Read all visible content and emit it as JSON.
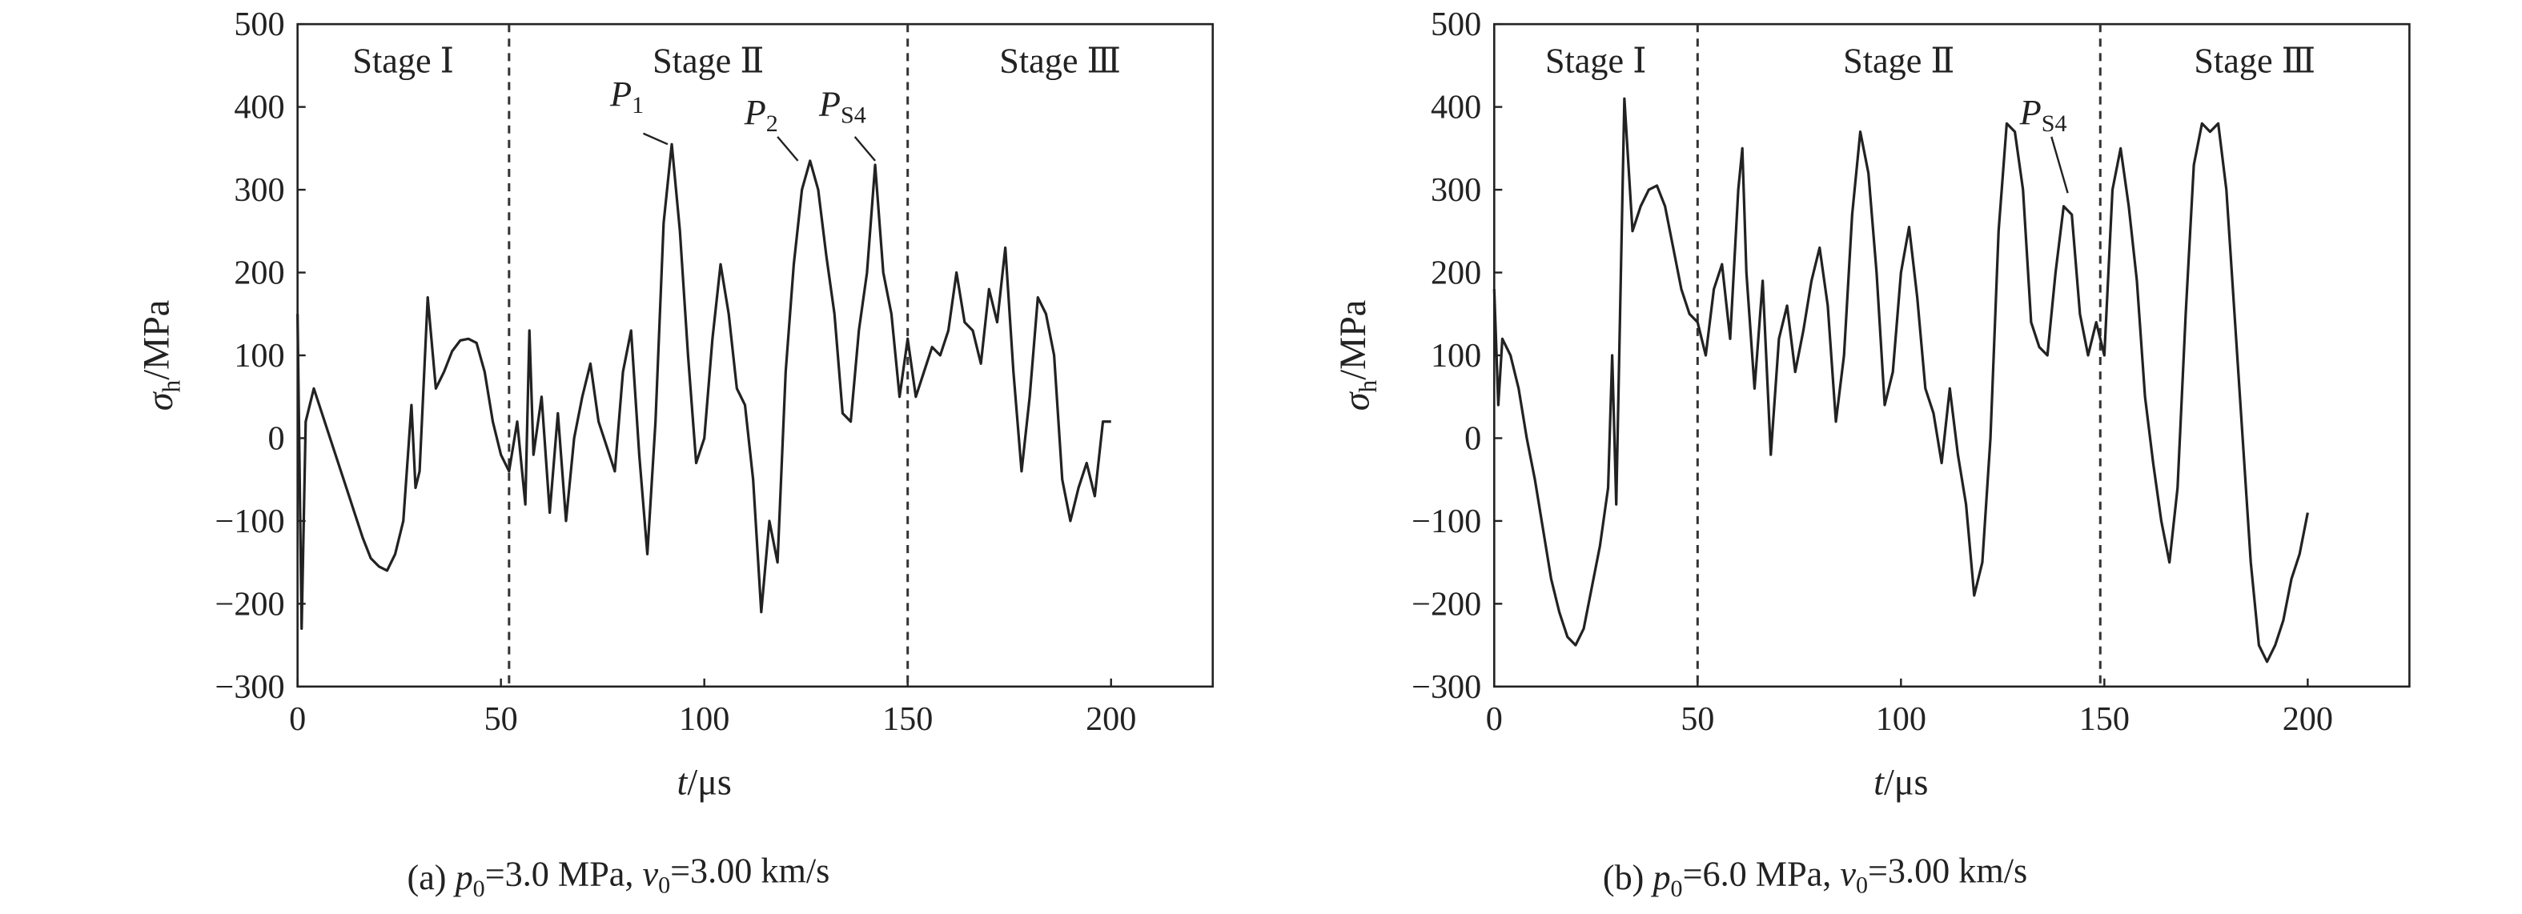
{
  "chart_data": [
    {
      "type": "line",
      "color": "#222",
      "xlim": [
        0,
        225
      ],
      "ylim": [
        -300,
        500
      ],
      "xticks": [
        0,
        50,
        100,
        150,
        200
      ],
      "yticks": [
        {
          "value": -300,
          "label": "−300"
        },
        {
          "value": -200,
          "label": "−200"
        },
        {
          "value": -100,
          "label": "−100"
        },
        0,
        100,
        200,
        300,
        400,
        500
      ],
      "x_label": [
        {
          "text": "t",
          "italic": true
        },
        {
          "text": "/μs"
        }
      ],
      "y_label": [
        {
          "text": "σ",
          "italic": true
        },
        {
          "text": "h",
          "sub": true
        },
        {
          "text": "/MPa"
        }
      ],
      "caption": [
        {
          "text": "(a) "
        },
        {
          "text": "p",
          "italic": true
        },
        {
          "text": "0",
          "sub": true
        },
        {
          "text": "=3.0 MPa, "
        },
        {
          "text": "v",
          "italic": true
        },
        {
          "text": "0",
          "sub": true
        },
        {
          "text": "=3.00 km/s"
        }
      ],
      "dividers": [
        52,
        150
      ],
      "stage_labels": [
        "Stage Ⅰ",
        "Stage Ⅱ",
        "Stage Ⅲ"
      ],
      "annotations": [
        [
          {
            "text": "P",
            "italic": true
          },
          {
            "text": "1",
            "sub": true
          }
        ],
        [
          {
            "text": "P",
            "italic": true
          },
          {
            "text": "2",
            "sub": true
          }
        ],
        [
          {
            "text": "P",
            "italic": true
          },
          {
            "text": "S4",
            "sub": true
          }
        ]
      ],
      "x": [
        0,
        1,
        2,
        4,
        6,
        8,
        10,
        12,
        14,
        16,
        18,
        20,
        22,
        24,
        26,
        28,
        29,
        30,
        32,
        34,
        36,
        38,
        40,
        42,
        44,
        46,
        48,
        50,
        52,
        54,
        56,
        57,
        58,
        60,
        62,
        64,
        66,
        68,
        70,
        72,
        74,
        76,
        78,
        80,
        82,
        84,
        86,
        88,
        90,
        92,
        94,
        96,
        98,
        100,
        102,
        104,
        106,
        108,
        110,
        112,
        114,
        116,
        118,
        120,
        122,
        124,
        126,
        128,
        130,
        132,
        134,
        136,
        138,
        140,
        142,
        144,
        146,
        148,
        150,
        152,
        154,
        156,
        158,
        160,
        162,
        164,
        166,
        168,
        170,
        172,
        174,
        176,
        178,
        180,
        182,
        184,
        186,
        188,
        190,
        192,
        194,
        196,
        198,
        200
      ],
      "values": [
        150,
        -230,
        20,
        60,
        30,
        0,
        -30,
        -60,
        -90,
        -120,
        -145,
        -155,
        -160,
        -140,
        -100,
        40,
        -60,
        -40,
        170,
        60,
        80,
        105,
        118,
        120,
        115,
        80,
        20,
        -20,
        -40,
        20,
        -80,
        130,
        -20,
        50,
        -90,
        30,
        -100,
        0,
        50,
        90,
        20,
        -10,
        -40,
        80,
        130,
        -20,
        -140,
        20,
        260,
        355,
        250,
        100,
        -30,
        0,
        120,
        210,
        150,
        60,
        40,
        -50,
        -210,
        -100,
        -150,
        80,
        210,
        300,
        335,
        300,
        220,
        150,
        30,
        20,
        130,
        200,
        330,
        200,
        150,
        50,
        120,
        50,
        80,
        110,
        100,
        130,
        200,
        140,
        130,
        90,
        180,
        140,
        230,
        80,
        -40,
        50,
        170,
        150,
        100,
        -50,
        -100,
        -60,
        -30,
        -70,
        20,
        20
      ]
    },
    {
      "type": "line",
      "color": "#222",
      "xlim": [
        0,
        225
      ],
      "ylim": [
        -300,
        500
      ],
      "xticks": [
        0,
        50,
        100,
        150,
        200
      ],
      "yticks": [
        {
          "value": -300,
          "label": "−300"
        },
        {
          "value": -200,
          "label": "−200"
        },
        {
          "value": -100,
          "label": "−100"
        },
        0,
        100,
        200,
        300,
        400,
        500
      ],
      "x_label": [
        {
          "text": "t",
          "italic": true
        },
        {
          "text": "/μs"
        }
      ],
      "y_label": [
        {
          "text": "σ",
          "italic": true
        },
        {
          "text": "h",
          "sub": true
        },
        {
          "text": "/MPa"
        }
      ],
      "caption": [
        {
          "text": "(b) "
        },
        {
          "text": "p",
          "italic": true
        },
        {
          "text": "0",
          "sub": true
        },
        {
          "text": "=6.0 MPa, "
        },
        {
          "text": "v",
          "italic": true
        },
        {
          "text": "0",
          "sub": true
        },
        {
          "text": "=3.00 km/s"
        }
      ],
      "dividers": [
        50,
        149
      ],
      "stage_labels": [
        "Stage Ⅰ",
        "Stage Ⅱ",
        "Stage Ⅲ"
      ],
      "annotations": [
        [
          {
            "text": "P",
            "italic": true
          },
          {
            "text": "S4",
            "sub": true
          }
        ]
      ],
      "x": [
        0,
        1,
        2,
        4,
        6,
        8,
        10,
        12,
        14,
        16,
        18,
        20,
        22,
        24,
        26,
        28,
        29,
        30,
        32,
        34,
        36,
        38,
        40,
        42,
        44,
        46,
        48,
        50,
        52,
        54,
        56,
        58,
        60,
        61,
        62,
        64,
        66,
        68,
        70,
        72,
        74,
        76,
        78,
        80,
        82,
        84,
        86,
        88,
        90,
        92,
        94,
        96,
        98,
        100,
        102,
        104,
        106,
        108,
        110,
        112,
        114,
        116,
        118,
        120,
        122,
        124,
        126,
        128,
        130,
        132,
        134,
        136,
        138,
        140,
        142,
        144,
        146,
        148,
        150,
        152,
        154,
        156,
        158,
        160,
        162,
        164,
        166,
        168,
        170,
        172,
        174,
        176,
        178,
        180,
        182,
        184,
        186,
        188,
        190,
        192,
        194,
        196,
        198,
        200
      ],
      "values": [
        180,
        40,
        120,
        100,
        60,
        0,
        -50,
        -110,
        -170,
        -210,
        -240,
        -250,
        -230,
        -180,
        -130,
        -60,
        100,
        -80,
        410,
        250,
        280,
        300,
        305,
        280,
        230,
        180,
        150,
        140,
        100,
        180,
        210,
        120,
        300,
        350,
        200,
        60,
        190,
        -20,
        120,
        160,
        80,
        130,
        190,
        230,
        160,
        20,
        100,
        270,
        370,
        320,
        200,
        40,
        80,
        200,
        255,
        170,
        60,
        30,
        -30,
        60,
        -20,
        -80,
        -190,
        -150,
        0,
        250,
        380,
        370,
        300,
        140,
        110,
        100,
        200,
        280,
        270,
        150,
        100,
        140,
        100,
        300,
        350,
        280,
        190,
        50,
        -30,
        -100,
        -150,
        -60,
        150,
        330,
        380,
        370,
        380,
        300,
        150,
        0,
        -150,
        -250,
        -270,
        -250,
        -220,
        -170,
        -140,
        -90
      ]
    }
  ]
}
